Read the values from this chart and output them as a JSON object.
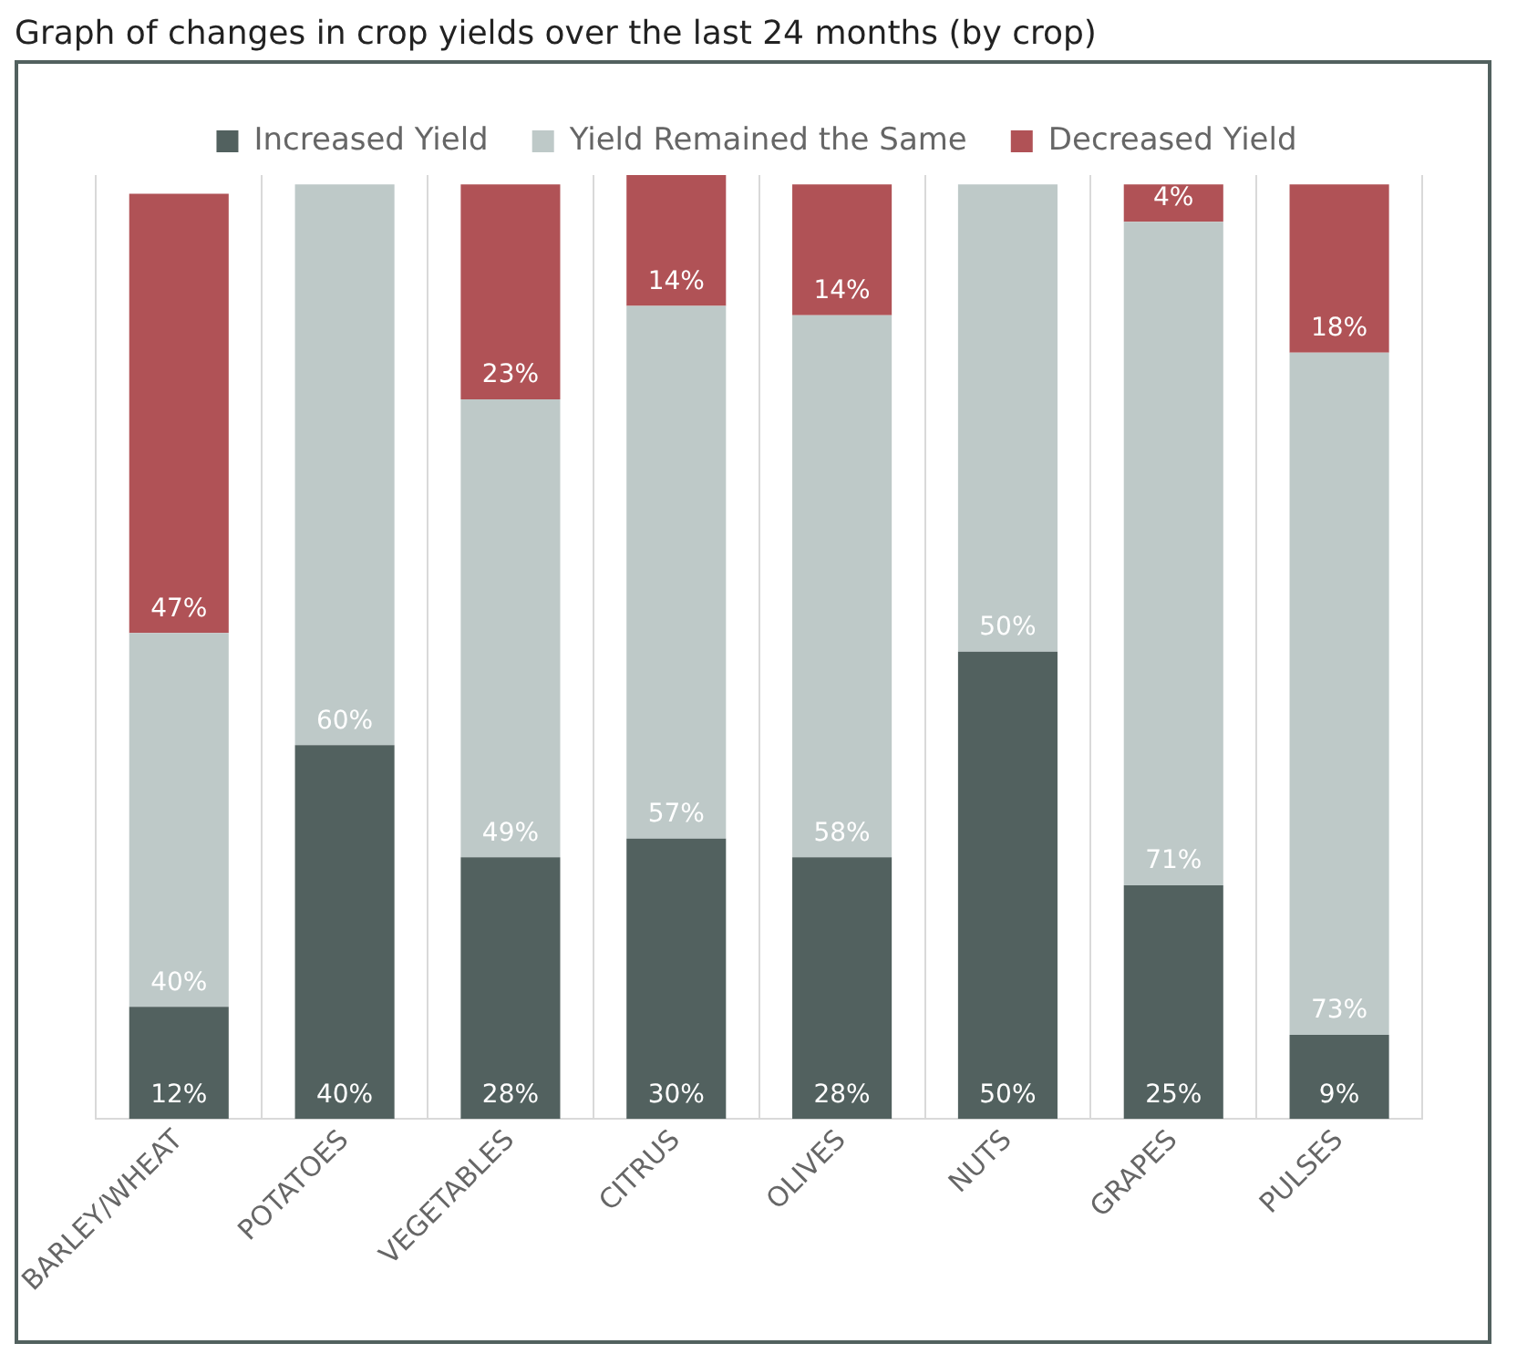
{
  "chart_data": {
    "type": "bar",
    "title": "Graph of changes in crop yields over the last 24 months (by crop)",
    "stacked": true,
    "categories": [
      "BARLEY/WHEAT",
      "POTATOES",
      "VEGETABLES",
      "CITRUS",
      "OLIVES",
      "NUTS",
      "GRAPES",
      "PULSES"
    ],
    "series": [
      {
        "name": "Increased Yield",
        "color": "#52615f",
        "values": [
          12,
          40,
          28,
          30,
          28,
          50,
          25,
          9
        ],
        "value_labels": [
          "12%",
          "40%",
          "28%",
          "30%",
          "28%",
          "50%",
          "25%",
          "9%"
        ]
      },
      {
        "name": "Yield Remained the Same",
        "color": "#bec9c8",
        "values": [
          40,
          60,
          49,
          57,
          58,
          50,
          71,
          73
        ],
        "value_labels": [
          "40%",
          "60%",
          "49%",
          "57%",
          "58%",
          "50%",
          "71%",
          "73%"
        ]
      },
      {
        "name": "Decreased Yield",
        "color": "#b05256",
        "values": [
          47,
          null,
          23,
          14,
          14,
          null,
          4,
          18
        ],
        "value_labels": [
          "47%",
          null,
          "23%",
          "14%",
          "14%",
          null,
          "4%",
          "18%"
        ]
      }
    ],
    "tick_labels": "x",
    "grid": "x",
    "legend": "top"
  }
}
